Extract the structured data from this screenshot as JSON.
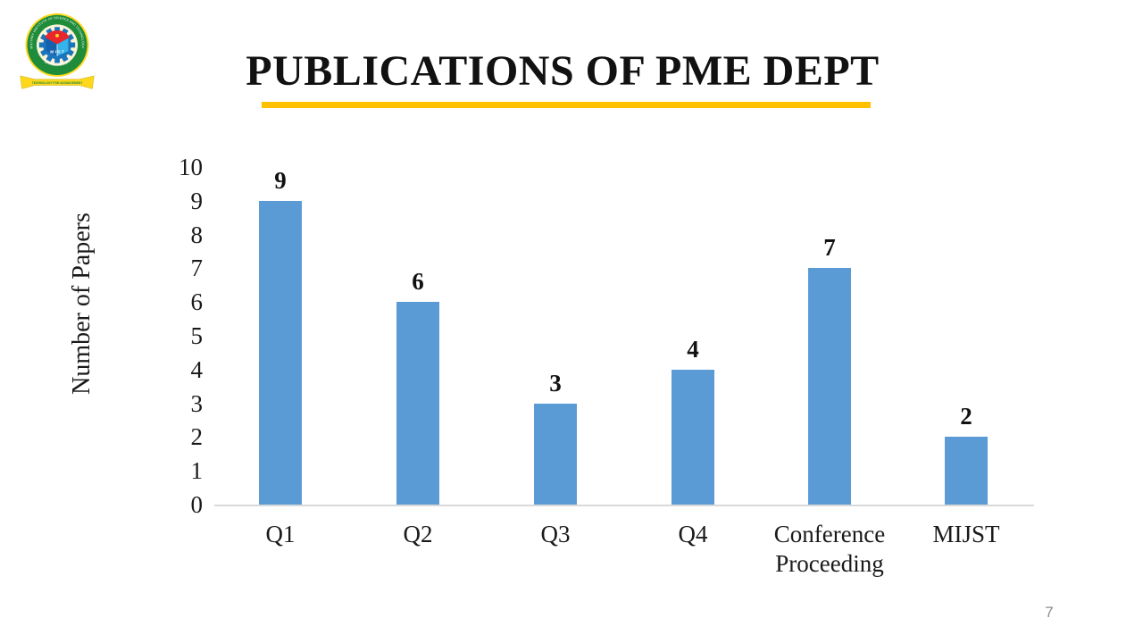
{
  "header": {
    "title": "PUBLICATIONS OF PME DEPT",
    "underline_color": "#FFC000",
    "logo": {
      "ring_text_top": "MILITARY INSTITUTE OF SCIENCE AND TECHNOLOGY",
      "ring_text_bottom": "BANGLADESH",
      "ribbon_text": "TECHNOLOGY FOR ADVANCEMENT",
      "emblem_letters": "M I S T"
    }
  },
  "chart_data": {
    "type": "bar",
    "title": "",
    "categories": [
      "Q1",
      "Q2",
      "Q3",
      "Q4",
      "Conference Proceeding",
      "MIJST"
    ],
    "values": [
      9,
      6,
      3,
      4,
      7,
      2
    ],
    "xlabel": "",
    "ylabel": "Number of Papers",
    "ylim": [
      0,
      10
    ],
    "yticks": [
      0,
      1,
      2,
      3,
      4,
      5,
      6,
      7,
      8,
      9,
      10
    ],
    "bar_color": "#5B9BD5",
    "axis_line_color": "#D9D9D9",
    "grid": false,
    "legend": false,
    "data_labels": true
  },
  "footer": {
    "page_number": "7"
  }
}
